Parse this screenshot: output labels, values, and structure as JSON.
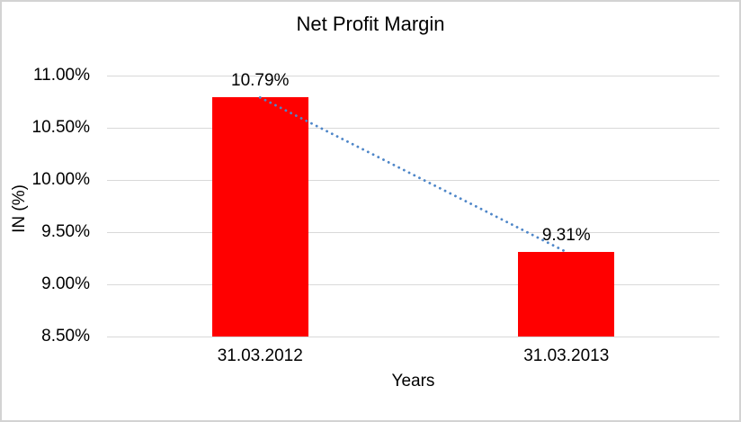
{
  "window": {
    "background": "#FFFFFF",
    "border_color": "#D3D3D3"
  },
  "chart_data": {
    "type": "bar",
    "title": "Net Profit Margin",
    "xlabel": "Years",
    "ylabel": "IN (%)",
    "categories": [
      "31.03.2012",
      "31.03.2013"
    ],
    "series": [
      {
        "name": "Net Profit Margin",
        "values": [
          10.79,
          9.31
        ],
        "data_labels": [
          "10.79%",
          "9.31%"
        ],
        "color": "#FF0000"
      }
    ],
    "y_axis": {
      "min": 8.5,
      "max": 11.0,
      "step": 0.5,
      "ticks": [
        11.0,
        10.5,
        10.0,
        9.5,
        9.0,
        8.5
      ],
      "tick_labels": [
        "11.00%",
        "10.50%",
        "10.00%",
        "9.50%",
        "9.00%",
        "8.50%"
      ]
    },
    "grid": true,
    "gridline_color": "#D9D9D9",
    "text_color": "#000000",
    "legend": "none",
    "trendline": {
      "type": "linear",
      "style": "dotted",
      "color": "#4E86C8",
      "from_value": 10.79,
      "to_value": 9.31
    }
  }
}
